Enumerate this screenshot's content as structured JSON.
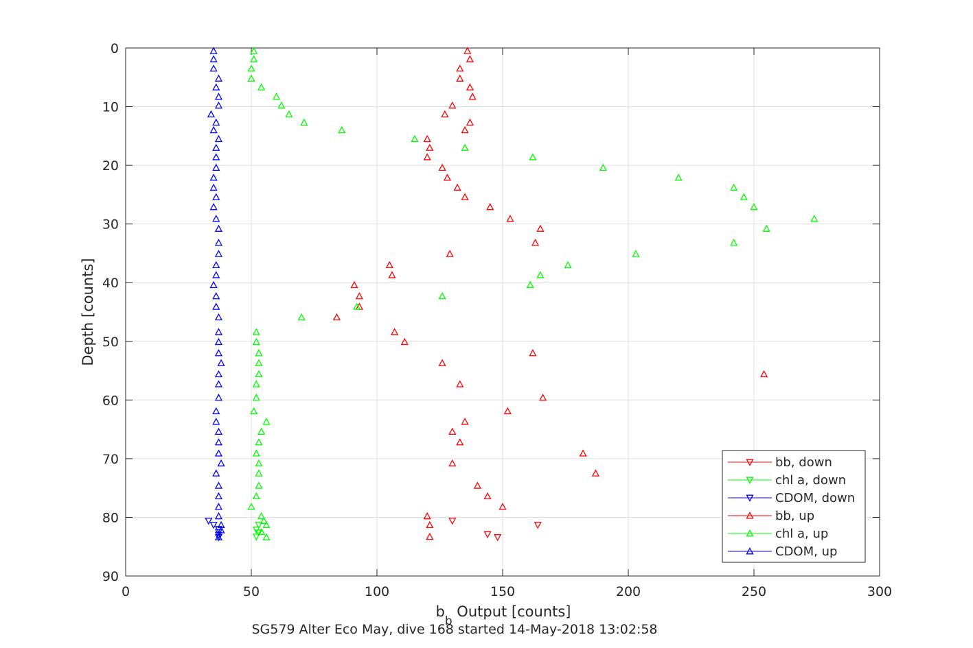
{
  "chart_data": {
    "type": "scatter",
    "xlabel_main": "b",
    "xlabel_sub": "b",
    "xlabel_rest": " Output [counts]",
    "ylabel": "Depth [counts]",
    "caption": "SG579 Alter Eco May, dive 168 started 14-May-2018 13:02:58",
    "xlim": [
      0,
      300
    ],
    "ylim": [
      0,
      90
    ],
    "y_reversed": true,
    "grid": true,
    "legend_position": "bottom-right",
    "x_ticks": [
      "0",
      "50",
      "100",
      "150",
      "200",
      "250",
      "300"
    ],
    "y_ticks": [
      "0",
      "10",
      "20",
      "30",
      "40",
      "50",
      "60",
      "70",
      "80",
      "90"
    ],
    "series": [
      {
        "name": "bb, down",
        "color": "#ff0000",
        "marker": "triangle-down",
        "points": [
          [
            130,
            80.6
          ],
          [
            164,
            81.3
          ],
          [
            144,
            82.9
          ],
          [
            148,
            83.4
          ]
        ]
      },
      {
        "name": "chl a, down",
        "color": "#00ff00",
        "marker": "triangle-down",
        "points": [
          [
            53,
            81.3
          ],
          [
            52,
            82.1
          ],
          [
            53,
            82.6
          ],
          [
            52,
            83.3
          ]
        ]
      },
      {
        "name": "CDOM, down",
        "color": "#0000ff",
        "marker": "triangle-down",
        "points": [
          [
            33,
            80.6
          ],
          [
            35,
            81.3
          ],
          [
            37,
            82.0
          ],
          [
            37,
            82.5
          ],
          [
            37,
            83.0
          ],
          [
            37,
            83.4
          ]
        ]
      },
      {
        "name": "bb, up",
        "color": "#ff0000",
        "marker": "triangle-up",
        "points": [
          [
            136,
            0.5
          ],
          [
            137,
            1.9
          ],
          [
            133,
            3.5
          ],
          [
            133,
            5.2
          ],
          [
            137,
            6.7
          ],
          [
            138,
            8.3
          ],
          [
            130,
            9.8
          ],
          [
            127,
            11.3
          ],
          [
            137,
            12.7
          ],
          [
            135,
            14.0
          ],
          [
            120,
            15.5
          ],
          [
            121,
            17.0
          ],
          [
            120,
            18.6
          ],
          [
            126,
            20.4
          ],
          [
            128,
            22.1
          ],
          [
            132,
            23.8
          ],
          [
            135,
            25.4
          ],
          [
            145,
            27.1
          ],
          [
            153,
            29.1
          ],
          [
            165,
            30.8
          ],
          [
            163,
            33.2
          ],
          [
            129,
            35.1
          ],
          [
            105,
            37.0
          ],
          [
            106,
            38.7
          ],
          [
            91,
            40.4
          ],
          [
            93,
            42.3
          ],
          [
            93,
            44.1
          ],
          [
            84,
            45.9
          ],
          [
            107,
            48.4
          ],
          [
            111,
            50.1
          ],
          [
            162,
            52.0
          ],
          [
            126,
            53.7
          ],
          [
            254,
            55.6
          ],
          [
            133,
            57.3
          ],
          [
            166,
            59.6
          ],
          [
            152,
            61.9
          ],
          [
            135,
            63.7
          ],
          [
            130,
            65.4
          ],
          [
            133,
            67.2
          ],
          [
            182,
            69.1
          ],
          [
            130,
            70.8
          ],
          [
            187,
            72.5
          ],
          [
            140,
            74.6
          ],
          [
            144,
            76.4
          ],
          [
            150,
            78.2
          ],
          [
            120,
            79.8
          ],
          [
            121,
            81.3
          ],
          [
            121,
            83.3
          ]
        ]
      },
      {
        "name": "chl a, up",
        "color": "#00ff00",
        "marker": "triangle-up",
        "points": [
          [
            51,
            0.5
          ],
          [
            51,
            1.9
          ],
          [
            50,
            3.5
          ],
          [
            50,
            5.2
          ],
          [
            54,
            6.7
          ],
          [
            60,
            8.3
          ],
          [
            62,
            9.8
          ],
          [
            65,
            11.3
          ],
          [
            71,
            12.7
          ],
          [
            86,
            14.0
          ],
          [
            115,
            15.5
          ],
          [
            135,
            17.0
          ],
          [
            162,
            18.6
          ],
          [
            190,
            20.4
          ],
          [
            220,
            22.1
          ],
          [
            242,
            23.8
          ],
          [
            246,
            25.4
          ],
          [
            250,
            27.1
          ],
          [
            274,
            29.1
          ],
          [
            255,
            30.8
          ],
          [
            242,
            33.2
          ],
          [
            203,
            35.1
          ],
          [
            176,
            37.0
          ],
          [
            165,
            38.7
          ],
          [
            161,
            40.4
          ],
          [
            126,
            42.3
          ],
          [
            92,
            44.1
          ],
          [
            70,
            45.9
          ],
          [
            52,
            48.4
          ],
          [
            52,
            50.1
          ],
          [
            53,
            52.0
          ],
          [
            53,
            53.7
          ],
          [
            53,
            55.6
          ],
          [
            52,
            57.3
          ],
          [
            52,
            59.6
          ],
          [
            51,
            61.9
          ],
          [
            56,
            63.7
          ],
          [
            54,
            65.4
          ],
          [
            53,
            67.2
          ],
          [
            52,
            69.1
          ],
          [
            53,
            70.8
          ],
          [
            53,
            72.5
          ],
          [
            53,
            74.6
          ],
          [
            52,
            76.4
          ],
          [
            50,
            78.2
          ],
          [
            54,
            79.8
          ],
          [
            55,
            80.6
          ],
          [
            56,
            81.3
          ],
          [
            54,
            82.5
          ],
          [
            56,
            83.4
          ]
        ]
      },
      {
        "name": "CDOM, up",
        "color": "#0000ff",
        "marker": "triangle-up",
        "points": [
          [
            35,
            0.5
          ],
          [
            35,
            1.9
          ],
          [
            35,
            3.5
          ],
          [
            37,
            5.2
          ],
          [
            36,
            6.7
          ],
          [
            37,
            8.3
          ],
          [
            37,
            9.8
          ],
          [
            34,
            11.3
          ],
          [
            36,
            12.7
          ],
          [
            35,
            14.0
          ],
          [
            37,
            15.5
          ],
          [
            36,
            17.0
          ],
          [
            36,
            18.6
          ],
          [
            36,
            20.4
          ],
          [
            35,
            22.1
          ],
          [
            35,
            23.8
          ],
          [
            36,
            25.4
          ],
          [
            35,
            27.1
          ],
          [
            36,
            29.1
          ],
          [
            37,
            30.8
          ],
          [
            37,
            33.2
          ],
          [
            37,
            35.1
          ],
          [
            36,
            37.0
          ],
          [
            36,
            38.7
          ],
          [
            35,
            40.4
          ],
          [
            36,
            42.3
          ],
          [
            36,
            44.1
          ],
          [
            37,
            45.9
          ],
          [
            37,
            48.4
          ],
          [
            37,
            50.1
          ],
          [
            37,
            52.0
          ],
          [
            38,
            53.7
          ],
          [
            37,
            55.6
          ],
          [
            37,
            57.3
          ],
          [
            37,
            59.6
          ],
          [
            36,
            61.9
          ],
          [
            36,
            63.7
          ],
          [
            37,
            65.4
          ],
          [
            37,
            67.2
          ],
          [
            37,
            69.1
          ],
          [
            38,
            70.8
          ],
          [
            36,
            72.5
          ],
          [
            37,
            74.6
          ],
          [
            37,
            76.4
          ],
          [
            37,
            78.2
          ],
          [
            37,
            79.8
          ],
          [
            38,
            81.3
          ],
          [
            38,
            82.2
          ],
          [
            37,
            83.4
          ]
        ]
      }
    ]
  }
}
